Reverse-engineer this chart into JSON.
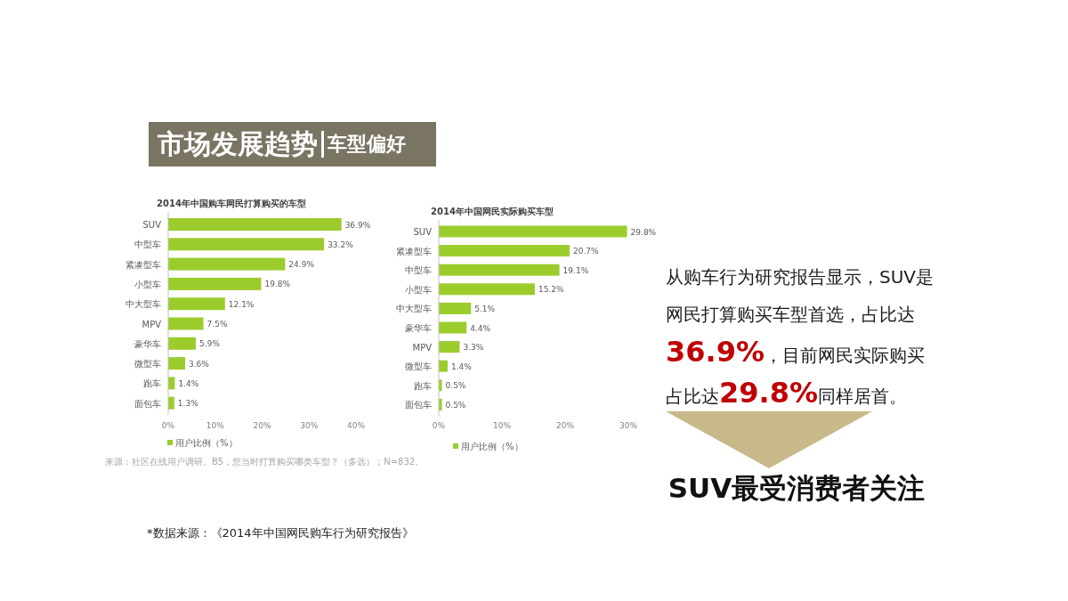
{
  "chart_data": [
    {
      "type": "bar",
      "orientation": "horizontal",
      "title": "2014年中国购车网民打算购买的车型",
      "categories": [
        "SUV",
        "中型车",
        "紧凑型车",
        "小型车",
        "中大型车",
        "MPV",
        "豪华车",
        "微型车",
        "跑车",
        "面包车"
      ],
      "series": [
        {
          "name": "用户比例（%）",
          "color": "#9ccc2c",
          "values": [
            36.9,
            33.2,
            24.9,
            19.8,
            12.1,
            7.5,
            5.9,
            3.6,
            1.4,
            1.3
          ],
          "value_labels": [
            "36.9%",
            "33.2%",
            "24.9%",
            "19.8%",
            "12.1%",
            "7.5%",
            "5.9%",
            "3.6%",
            "1.4%",
            "1.3%"
          ]
        }
      ],
      "xlim": [
        0,
        40
      ],
      "xticks": [
        {
          "value": 0,
          "label": "0%"
        },
        {
          "value": 10,
          "label": "10%"
        },
        {
          "value": 20,
          "label": "20%"
        },
        {
          "value": 30,
          "label": "30%"
        },
        {
          "value": 40,
          "label": "40%"
        }
      ],
      "legend": "bottom",
      "annotations": [
        "来源：社区在线用户调研。B5，您当时打算购买哪类车型？（多选）；N=832。"
      ]
    },
    {
      "type": "bar",
      "orientation": "horizontal",
      "title": "2014年中国网民实际购买车型",
      "categories": [
        "SUV",
        "紧凑型车",
        "中型车",
        "小型车",
        "中大型车",
        "豪华车",
        "MPV",
        "微型车",
        "跑车",
        "面包车"
      ],
      "series": [
        {
          "name": "用户比例（%）",
          "color": "#9ccc2c",
          "values": [
            29.8,
            20.7,
            19.1,
            15.2,
            5.1,
            4.4,
            3.3,
            1.4,
            0.5,
            0.5
          ],
          "value_labels": [
            "29.8%",
            "20.7%",
            "19.1%",
            "15.2%",
            "5.1%",
            "4.4%",
            "3.3%",
            "1.4%",
            "0.5%",
            "0.5%"
          ]
        }
      ],
      "xlim": [
        0,
        30
      ],
      "xticks": [
        {
          "value": 0,
          "label": "0%"
        },
        {
          "value": 10,
          "label": "10%"
        },
        {
          "value": 20,
          "label": "20%"
        },
        {
          "value": 30,
          "label": "30%"
        }
      ],
      "legend": "bottom"
    },
    {
      "type": "other",
      "title": "市场发展趋势",
      "subtitle": "车型偏好",
      "annotations": [
        "从购车行为研究报告显示，SUV是网民打算购买车型首选，占比达**36.9%**，目前网民实际购买占比达**29.8%**同样居首。",
        "SUV最受消费者关注",
        "*数据来源：《2014年中国网民购车行为研究报告》"
      ]
    }
  ]
}
